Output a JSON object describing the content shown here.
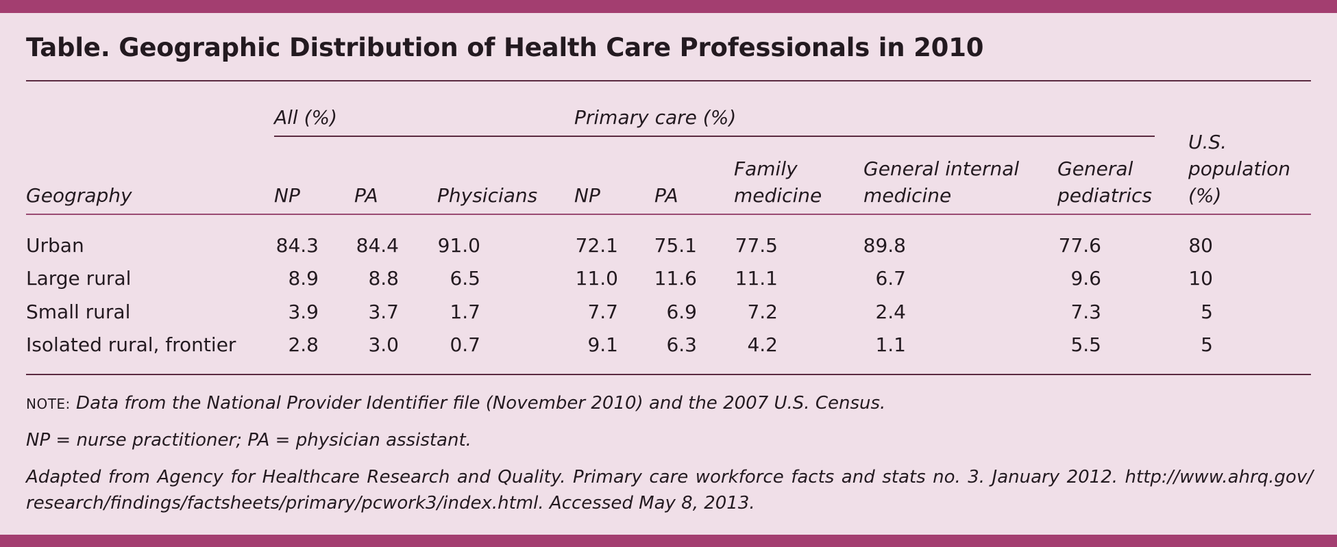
{
  "title": "Table. Geographic Distribution of Health Care Professionals in 2010",
  "group_headers": {
    "all": "All (%)",
    "primary": "Primary care (%)"
  },
  "columns": {
    "geography": "Geography",
    "np_all": "NP",
    "pa_all": "PA",
    "physicians": "Physicians",
    "np_primary": "NP",
    "pa_primary": "PA",
    "family_line1": "Family",
    "family_line2": "medicine",
    "gim_line1": "General internal",
    "gim_line2": "medicine",
    "peds_line1": "General",
    "peds_line2": "pediatrics",
    "pop_line1": "U.S.",
    "pop_line2": "population",
    "pop_line3": "(%)"
  },
  "rows": [
    {
      "geography": "Urban",
      "values": [
        "84.3",
        "84.4",
        "91.0",
        "72.1",
        "75.1",
        "77.5",
        "89.8",
        "77.6",
        "80"
      ]
    },
    {
      "geography": "Large rural",
      "values": [
        "8.9",
        "8.8",
        "6.5",
        "11.0",
        "11.6",
        "11.1",
        "6.7",
        "9.6",
        "10"
      ]
    },
    {
      "geography": "Small rural",
      "values": [
        "3.9",
        "3.7",
        "1.7",
        "7.7",
        "6.9",
        "7.2",
        "2.4",
        "7.3",
        "5"
      ]
    },
    {
      "geography": "Isolated rural, frontier",
      "values": [
        "2.8",
        "3.0",
        "0.7",
        "9.1",
        "6.3",
        "4.2",
        "1.1",
        "5.5",
        "5"
      ]
    }
  ],
  "footnotes": {
    "note_label": "NOTE:",
    "note_text": " Data from the National Provider Identifier file (November 2010) and the 2007 U.S. Census.",
    "abbrev": "NP = nurse practitioner; PA = physician assistant.",
    "source": "Adapted from Agency for Healthcare Research and Quality. Primary care workforce facts and stats no. 3. January 2012. http://www.ahrq.gov/ research/findings/factsheets/primary/pcwork3/index.html. Accessed May 8, 2013."
  },
  "colors": {
    "background": "#f0dfe8",
    "accent_bar": "#a33e70",
    "text": "#231a20"
  }
}
